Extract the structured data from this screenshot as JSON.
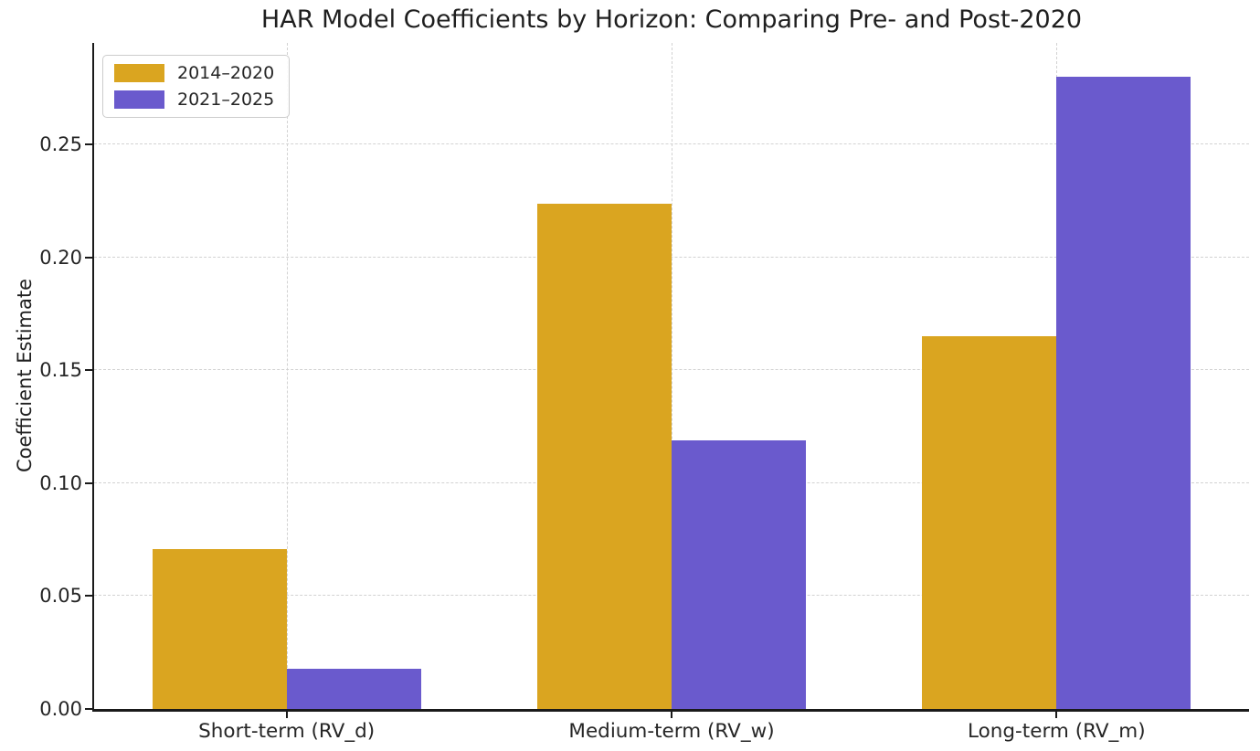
{
  "chart_data": {
    "type": "bar",
    "title": "HAR Model Coefficients by Horizon: Comparing Pre- and Post-2020",
    "xlabel": "",
    "ylabel": "Coefficient Estimate",
    "categories": [
      "Short-term (RV_d)",
      "Medium-term (RV_w)",
      "Long-term (RV_m)"
    ],
    "series": [
      {
        "name": "2014–2020",
        "color": "#DAA520",
        "values": [
          0.071,
          0.224,
          0.165
        ]
      },
      {
        "name": "2021–2025",
        "color": "#6A5ACD",
        "values": [
          0.018,
          0.119,
          0.28
        ]
      }
    ],
    "ylim": [
      0,
      0.295
    ],
    "yticks": [
      0.0,
      0.05,
      0.1,
      0.15,
      0.2,
      0.25
    ],
    "ytick_labels": [
      "0.00",
      "0.05",
      "0.10",
      "0.15",
      "0.20",
      "0.25"
    ],
    "grid": true,
    "grid_style": "dashed",
    "legend_position": "upper left",
    "bar_width_fraction": 0.35,
    "axis_color": "#1a1a1a",
    "grid_color": "#d2d2d2",
    "text_color": "#262626"
  }
}
